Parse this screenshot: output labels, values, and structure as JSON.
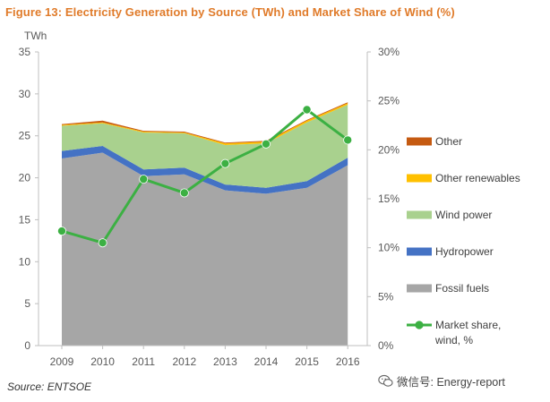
{
  "figure_title": "Figure 13: Electricity Generation by Source (TWh) and Market Share of Wind (%)",
  "source": "Source: ENTSOE",
  "watermark": "微信号: Energy-report",
  "colors": {
    "title": "#e07b2a",
    "fossil": "#a6a6a6",
    "hydro": "#4472c4",
    "wind": "#a9d18e",
    "other_renewables": "#ffc000",
    "other": "#c55a11",
    "market_share": "#3cb043"
  },
  "chart_data": {
    "type": "area",
    "categories": [
      "2009",
      "2010",
      "2011",
      "2012",
      "2013",
      "2014",
      "2015",
      "2016"
    ],
    "y_left": {
      "label": "TWh",
      "range": [
        0,
        35
      ],
      "ticks": [
        "0",
        "5",
        "10",
        "15",
        "20",
        "25",
        "30",
        "35"
      ]
    },
    "y_right": {
      "range": [
        0,
        30
      ],
      "ticks": [
        "0%",
        "5%",
        "10%",
        "15%",
        "20%",
        "25%",
        "30%"
      ]
    },
    "stacked_series": [
      {
        "name": "Fossil fuels",
        "color": "#a6a6a6",
        "values": [
          22.3,
          23.0,
          20.2,
          20.4,
          18.5,
          18.1,
          18.8,
          21.5
        ]
      },
      {
        "name": "Hydropower",
        "color": "#4472c4",
        "values": [
          0.9,
          0.8,
          0.8,
          0.8,
          0.7,
          0.7,
          0.8,
          0.9
        ]
      },
      {
        "name": "Wind power",
        "color": "#a9d18e",
        "values": [
          3.0,
          2.7,
          4.4,
          4.1,
          4.7,
          5.3,
          7.0,
          6.3
        ]
      },
      {
        "name": "Other renewables",
        "color": "#ffc000",
        "values": [
          0.1,
          0.1,
          0.1,
          0.1,
          0.2,
          0.2,
          0.2,
          0.2
        ]
      },
      {
        "name": "Other",
        "color": "#c55a11",
        "values": [
          0.1,
          0.2,
          0.1,
          0.1,
          0.1,
          0.1,
          0.1,
          0.1
        ]
      }
    ],
    "line_series": {
      "name": "Market share,\nwind, %",
      "color": "#3cb043",
      "axis": "right",
      "values": [
        11.7,
        10.5,
        17.0,
        15.6,
        18.6,
        20.6,
        24.1,
        21.0
      ]
    },
    "legend_items": [
      {
        "label": "Other",
        "color": "#c55a11",
        "kind": "swatch"
      },
      {
        "label": "Other renewables",
        "color": "#ffc000",
        "kind": "swatch"
      },
      {
        "label": "Wind power",
        "color": "#a9d18e",
        "kind": "swatch"
      },
      {
        "label": "Hydropower",
        "color": "#4472c4",
        "kind": "swatch"
      },
      {
        "label": "Fossil fuels",
        "color": "#a6a6a6",
        "kind": "swatch"
      },
      {
        "label": "Market share,\nwind, %",
        "color": "#3cb043",
        "kind": "line"
      }
    ],
    "legend_position": "right",
    "grid": false
  }
}
